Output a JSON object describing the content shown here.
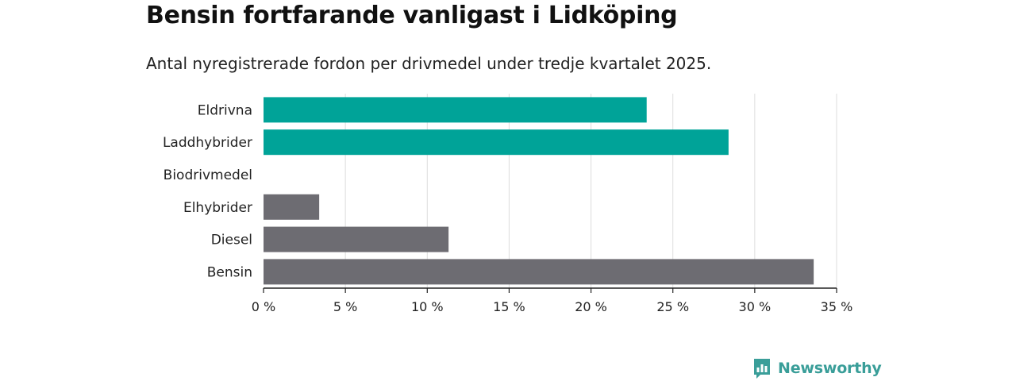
{
  "header": {
    "title": "Bensin fortfarande vanligast i Lidköping",
    "subtitle": "Antal nyregistrerade fordon per drivmedel under tredje kvartalet 2025."
  },
  "colors": {
    "highlight": "#00a398",
    "default": "#6d6c72",
    "grid": "#dddddd",
    "axis": "#222222",
    "brand": "#3a9e99"
  },
  "chart_data": {
    "type": "bar",
    "orientation": "horizontal",
    "title": "Bensin fortfarande vanligast i Lidköping",
    "subtitle": "Antal nyregistrerade fordon per drivmedel under tredje kvartalet 2025.",
    "xlabel": "",
    "ylabel": "",
    "categories": [
      "Eldrivna",
      "Laddhybrider",
      "Biodrivmedel",
      "Elhybrider",
      "Diesel",
      "Bensin"
    ],
    "values": [
      23.4,
      28.4,
      0,
      3.4,
      11.3,
      33.6
    ],
    "highlighted": [
      true,
      true,
      false,
      false,
      false,
      false
    ],
    "unit": "%",
    "xlim": [
      0,
      35
    ],
    "ticks": [
      0,
      5,
      10,
      15,
      20,
      25,
      30,
      35
    ],
    "tick_labels": [
      "0 %",
      "5 %",
      "10 %",
      "15 %",
      "20 %",
      "25 %",
      "30 %",
      "35 %"
    ],
    "grid": true,
    "legend": "none"
  },
  "footer": {
    "brand": "Newsworthy",
    "logo_icon": "newsworthy-logo-icon"
  }
}
